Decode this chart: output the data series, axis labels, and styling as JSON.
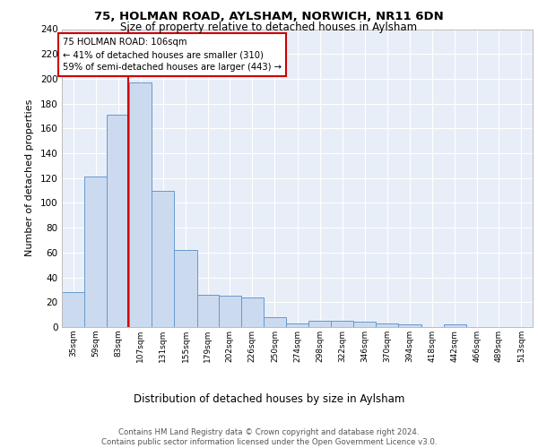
{
  "title1": "75, HOLMAN ROAD, AYLSHAM, NORWICH, NR11 6DN",
  "title2": "Size of property relative to detached houses in Aylsham",
  "xlabel": "Distribution of detached houses by size in Aylsham",
  "ylabel": "Number of detached properties",
  "bin_labels": [
    "35sqm",
    "59sqm",
    "83sqm",
    "107sqm",
    "131sqm",
    "155sqm",
    "179sqm",
    "202sqm",
    "226sqm",
    "250sqm",
    "274sqm",
    "298sqm",
    "322sqm",
    "346sqm",
    "370sqm",
    "394sqm",
    "418sqm",
    "442sqm",
    "466sqm",
    "489sqm",
    "513sqm"
  ],
  "bar_heights": [
    28,
    121,
    171,
    197,
    110,
    62,
    26,
    25,
    24,
    8,
    3,
    5,
    5,
    4,
    3,
    2,
    0,
    2,
    0,
    0,
    0
  ],
  "bar_color": "#ccdaf0",
  "bar_edge_color": "#6699cc",
  "annotation_text": "75 HOLMAN ROAD: 106sqm\n← 41% of detached houses are smaller (310)\n59% of semi-detached houses are larger (443) →",
  "vline_x": 106,
  "vline_color": "#cc0000",
  "annotation_box_edge": "#cc0000",
  "footer_text": "Contains HM Land Registry data © Crown copyright and database right 2024.\nContains public sector information licensed under the Open Government Licence v3.0.",
  "ylim": [
    0,
    240
  ],
  "yticks": [
    0,
    20,
    40,
    60,
    80,
    100,
    120,
    140,
    160,
    180,
    200,
    220,
    240
  ],
  "bin_edges": [
    35,
    59,
    83,
    107,
    131,
    155,
    179,
    202,
    226,
    250,
    274,
    298,
    322,
    346,
    370,
    394,
    418,
    442,
    466,
    489,
    513,
    537
  ],
  "background_color": "#e8eef8"
}
